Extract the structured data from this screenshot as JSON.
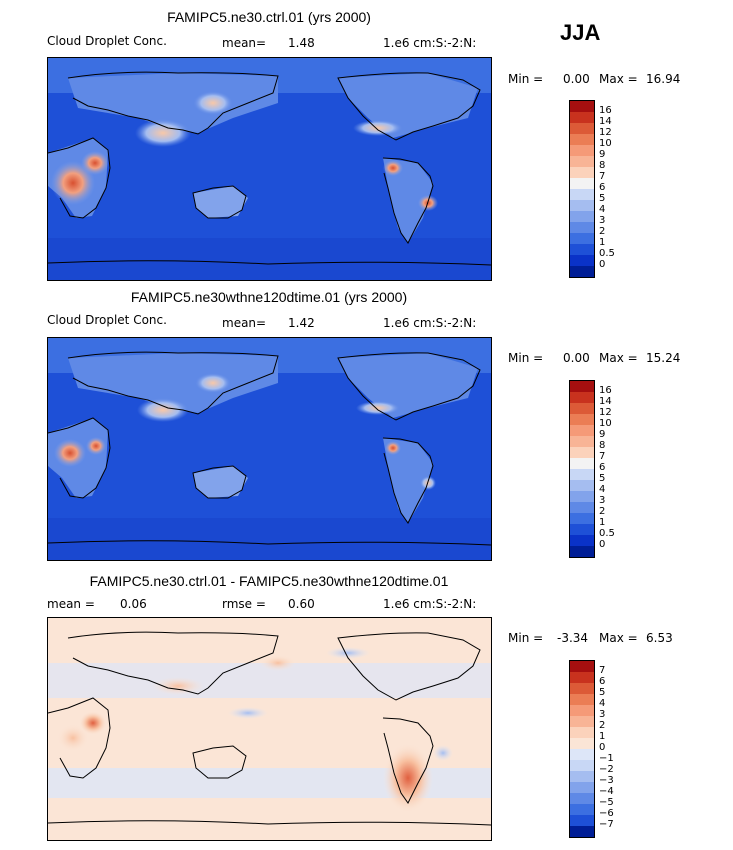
{
  "season": "JJA",
  "panels": [
    {
      "title": "FAMIPC5.ne30.ctrl.01 (yrs 2000)",
      "left_label": "Cloud Droplet Conc.",
      "stat1_label": "mean=",
      "stat1_value": "1.48",
      "units": "1.e6 cm:S:-2:N:",
      "min_label": "Min =",
      "min_value": "0.00",
      "max_label": "Max =",
      "max_value": "16.94",
      "colorbar": {
        "labels": [
          "16",
          "14",
          "12",
          "10",
          "9",
          "8",
          "7",
          "6",
          "5",
          "4",
          "3",
          "2",
          "1",
          "0.5",
          "0"
        ],
        "colors": [
          "#a50f0f",
          "#c8321e",
          "#dc5a37",
          "#eb7d55",
          "#f59a78",
          "#f8b496",
          "#fbd2bb",
          "#f3f3f3",
          "#c8d7f5",
          "#a5bdf0",
          "#82a3eb",
          "#5f89e6",
          "#3c6fe1",
          "#1e50d7",
          "#0a32c8",
          "#001e96"
        ]
      }
    },
    {
      "title": "FAMIPC5.ne30wthne120dtime.01 (yrs 2000)",
      "left_label": "Cloud Droplet Conc.",
      "stat1_label": "mean=",
      "stat1_value": "1.42",
      "units": "1.e6 cm:S:-2:N:",
      "min_label": "Min =",
      "min_value": "0.00",
      "max_label": "Max =",
      "max_value": "15.24",
      "colorbar": {
        "labels": [
          "16",
          "14",
          "12",
          "10",
          "9",
          "8",
          "7",
          "6",
          "5",
          "4",
          "3",
          "2",
          "1",
          "0.5",
          "0"
        ],
        "colors": [
          "#a50f0f",
          "#c8321e",
          "#dc5a37",
          "#eb7d55",
          "#f59a78",
          "#f8b496",
          "#fbd2bb",
          "#f3f3f3",
          "#c8d7f5",
          "#a5bdf0",
          "#82a3eb",
          "#5f89e6",
          "#3c6fe1",
          "#1e50d7",
          "#0a32c8",
          "#001e96"
        ]
      }
    },
    {
      "title": "FAMIPC5.ne30.ctrl.01 - FAMIPC5.ne30wthne120dtime.01",
      "left_label": "mean =",
      "left_value": "0.06",
      "stat1_label": "rmse =",
      "stat1_value": "0.60",
      "units": "1.e6 cm:S:-2:N:",
      "min_label": "Min =",
      "min_value": "-3.34",
      "max_label": "Max =",
      "max_value": "6.53",
      "colorbar": {
        "labels": [
          "7",
          "6",
          "5",
          "4",
          "3",
          "2",
          "1",
          "0",
          "−1",
          "−2",
          "−3",
          "−4",
          "−5",
          "−6",
          "−7"
        ],
        "colors": [
          "#a50f0f",
          "#c8321e",
          "#dc5a37",
          "#eb7d55",
          "#f59a78",
          "#f8b496",
          "#fbd2bb",
          "#fbe5d6",
          "#dde6f8",
          "#c8d7f5",
          "#a5bdf0",
          "#82a3eb",
          "#5f89e6",
          "#3c6fe1",
          "#1e50d7",
          "#001e96"
        ]
      }
    }
  ],
  "chart_data": [
    {
      "type": "heatmap",
      "title": "FAMIPC5.ne30.ctrl.01 (yrs 2000)",
      "variable": "Cloud Droplet Conc.",
      "units": "1.e6 cm:S:-2:N:",
      "mean": 1.48,
      "min": 0.0,
      "max": 16.94,
      "levels": [
        0,
        0.5,
        1,
        2,
        3,
        4,
        5,
        6,
        7,
        8,
        9,
        10,
        12,
        14,
        16
      ]
    },
    {
      "type": "heatmap",
      "title": "FAMIPC5.ne30wthne120dtime.01 (yrs 2000)",
      "variable": "Cloud Droplet Conc.",
      "units": "1.e6 cm:S:-2:N:",
      "mean": 1.42,
      "min": 0.0,
      "max": 15.24,
      "levels": [
        0,
        0.5,
        1,
        2,
        3,
        4,
        5,
        6,
        7,
        8,
        9,
        10,
        12,
        14,
        16
      ]
    },
    {
      "type": "heatmap",
      "title": "FAMIPC5.ne30.ctrl.01 - FAMIPC5.ne30wthne120dtime.01",
      "units": "1.e6 cm:S:-2:N:",
      "mean": 0.06,
      "rmse": 0.6,
      "min": -3.34,
      "max": 6.53,
      "levels": [
        -7,
        -6,
        -5,
        -4,
        -3,
        -2,
        -1,
        0,
        1,
        2,
        3,
        4,
        5,
        6,
        7
      ]
    }
  ]
}
